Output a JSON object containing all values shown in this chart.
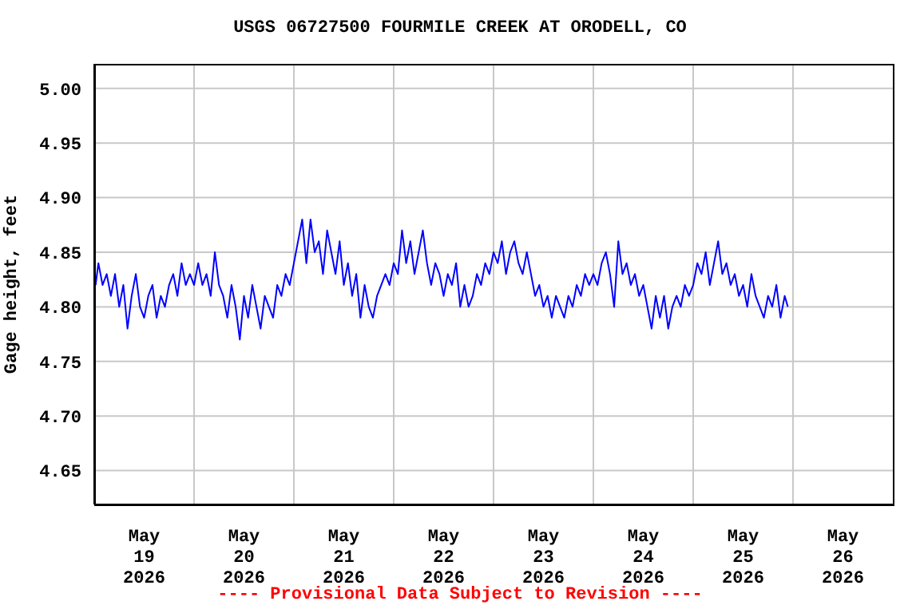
{
  "chart_data": {
    "type": "line",
    "title": "USGS 06727500 FOURMILE CREEK AT ORODELL, CO",
    "ylabel": "Gage height, feet",
    "annotations": [
      "---- Provisional Data Subject to Revision ----"
    ],
    "xlim": [
      "2026-05-19T00:00",
      "2026-05-27T00:00"
    ],
    "xticks": [
      {
        "value": "2026-05-19T12:00",
        "label": "May\n19\n2026"
      },
      {
        "value": "2026-05-20T00:00",
        "label": null
      },
      {
        "value": "2026-05-20T12:00",
        "label": "May\n20\n2026"
      },
      {
        "value": "2026-05-21T00:00",
        "label": null
      },
      {
        "value": "2026-05-21T12:00",
        "label": "May\n21\n2026"
      },
      {
        "value": "2026-05-22T00:00",
        "label": null
      },
      {
        "value": "2026-05-22T12:00",
        "label": "May\n22\n2026"
      },
      {
        "value": "2026-05-23T00:00",
        "label": null
      },
      {
        "value": "2026-05-23T12:00",
        "label": "May\n23\n2026"
      },
      {
        "value": "2026-05-24T00:00",
        "label": null
      },
      {
        "value": "2026-05-24T12:00",
        "label": "May\n24\n2026"
      },
      {
        "value": "2026-05-25T00:00",
        "label": null
      },
      {
        "value": "2026-05-25T12:00",
        "label": "May\n25\n2026"
      },
      {
        "value": "2026-05-26T00:00",
        "label": null
      },
      {
        "value": "2026-05-26T12:00",
        "label": "May\n26\n2026"
      }
    ],
    "ylim": [
      4.619,
      5.0225
    ],
    "yticks": [
      {
        "value": 4.65,
        "label": "4.65"
      },
      {
        "value": 4.7,
        "label": "4.70"
      },
      {
        "value": 4.75,
        "label": "4.75"
      },
      {
        "value": 4.8,
        "label": "4.80"
      },
      {
        "value": 4.85,
        "label": "4.85"
      },
      {
        "value": 4.9,
        "label": "4.90"
      },
      {
        "value": 4.95,
        "label": "4.95"
      },
      {
        "value": 5,
        "label": "5.00"
      }
    ],
    "grid": true,
    "marker": "none",
    "line_style": "solid",
    "series": [
      {
        "color": "#0000ff",
        "x": [
          "2026-05-19T00:20",
          "2026-05-19T01:00",
          "2026-05-19T02:00",
          "2026-05-19T03:00",
          "2026-05-19T04:00",
          "2026-05-19T05:00",
          "2026-05-19T06:00",
          "2026-05-19T07:00",
          "2026-05-19T08:00",
          "2026-05-19T09:00",
          "2026-05-19T10:00",
          "2026-05-19T11:00",
          "2026-05-19T12:00",
          "2026-05-19T13:00",
          "2026-05-19T14:00",
          "2026-05-19T15:00",
          "2026-05-19T16:00",
          "2026-05-19T17:00",
          "2026-05-19T18:00",
          "2026-05-19T19:00",
          "2026-05-19T20:00",
          "2026-05-19T21:00",
          "2026-05-19T22:00",
          "2026-05-19T23:00",
          "2026-05-20T00:00",
          "2026-05-20T01:00",
          "2026-05-20T02:00",
          "2026-05-20T03:00",
          "2026-05-20T04:00",
          "2026-05-20T05:00",
          "2026-05-20T06:00",
          "2026-05-20T07:00",
          "2026-05-20T08:00",
          "2026-05-20T09:00",
          "2026-05-20T10:00",
          "2026-05-20T11:00",
          "2026-05-20T12:00",
          "2026-05-20T13:00",
          "2026-05-20T14:00",
          "2026-05-20T15:00",
          "2026-05-20T16:00",
          "2026-05-20T17:00",
          "2026-05-20T18:00",
          "2026-05-20T19:00",
          "2026-05-20T20:00",
          "2026-05-20T21:00",
          "2026-05-20T22:00",
          "2026-05-20T23:00",
          "2026-05-21T00:00",
          "2026-05-21T01:00",
          "2026-05-21T02:00",
          "2026-05-21T03:00",
          "2026-05-21T04:00",
          "2026-05-21T05:00",
          "2026-05-21T06:00",
          "2026-05-21T07:00",
          "2026-05-21T08:00",
          "2026-05-21T09:00",
          "2026-05-21T10:00",
          "2026-05-21T11:00",
          "2026-05-21T12:00",
          "2026-05-21T13:00",
          "2026-05-21T14:00",
          "2026-05-21T15:00",
          "2026-05-21T16:00",
          "2026-05-21T17:00",
          "2026-05-21T18:00",
          "2026-05-21T19:00",
          "2026-05-21T20:00",
          "2026-05-21T21:00",
          "2026-05-21T22:00",
          "2026-05-21T23:00",
          "2026-05-22T00:00",
          "2026-05-22T01:00",
          "2026-05-22T02:00",
          "2026-05-22T03:00",
          "2026-05-22T04:00",
          "2026-05-22T05:00",
          "2026-05-22T06:00",
          "2026-05-22T07:00",
          "2026-05-22T08:00",
          "2026-05-22T09:00",
          "2026-05-22T10:00",
          "2026-05-22T11:00",
          "2026-05-22T12:00",
          "2026-05-22T13:00",
          "2026-05-22T14:00",
          "2026-05-22T15:00",
          "2026-05-22T16:00",
          "2026-05-22T17:00",
          "2026-05-22T18:00",
          "2026-05-22T19:00",
          "2026-05-22T20:00",
          "2026-05-22T21:00",
          "2026-05-22T22:00",
          "2026-05-22T23:00",
          "2026-05-23T00:00",
          "2026-05-23T01:00",
          "2026-05-23T02:00",
          "2026-05-23T03:00",
          "2026-05-23T04:00",
          "2026-05-23T05:00",
          "2026-05-23T06:00",
          "2026-05-23T07:00",
          "2026-05-23T08:00",
          "2026-05-23T09:00",
          "2026-05-23T10:00",
          "2026-05-23T11:00",
          "2026-05-23T12:00",
          "2026-05-23T13:00",
          "2026-05-23T14:00",
          "2026-05-23T15:00",
          "2026-05-23T16:00",
          "2026-05-23T17:00",
          "2026-05-23T18:00",
          "2026-05-23T19:00",
          "2026-05-23T20:00",
          "2026-05-23T21:00",
          "2026-05-23T22:00",
          "2026-05-23T23:00",
          "2026-05-24T00:00",
          "2026-05-24T01:00",
          "2026-05-24T02:00",
          "2026-05-24T03:00",
          "2026-05-24T04:00",
          "2026-05-24T05:00",
          "2026-05-24T06:00",
          "2026-05-24T07:00",
          "2026-05-24T08:00",
          "2026-05-24T09:00",
          "2026-05-24T10:00",
          "2026-05-24T11:00",
          "2026-05-24T12:00",
          "2026-05-24T13:00",
          "2026-05-24T14:00",
          "2026-05-24T15:00",
          "2026-05-24T16:00",
          "2026-05-24T17:00",
          "2026-05-24T18:00",
          "2026-05-24T19:00",
          "2026-05-24T20:00",
          "2026-05-24T21:00",
          "2026-05-24T22:00",
          "2026-05-24T23:00",
          "2026-05-25T00:00",
          "2026-05-25T01:00",
          "2026-05-25T02:00",
          "2026-05-25T03:00",
          "2026-05-25T04:00",
          "2026-05-25T05:00",
          "2026-05-25T06:00",
          "2026-05-25T07:00",
          "2026-05-25T08:00",
          "2026-05-25T09:00",
          "2026-05-25T10:00",
          "2026-05-25T11:00",
          "2026-05-25T12:00",
          "2026-05-25T13:00",
          "2026-05-25T14:00",
          "2026-05-25T15:00",
          "2026-05-25T16:00",
          "2026-05-25T17:00",
          "2026-05-25T18:00",
          "2026-05-25T19:00",
          "2026-05-25T20:00",
          "2026-05-25T21:00",
          "2026-05-25T22:00",
          "2026-05-25T22:45"
        ],
        "values": [
          4.82,
          4.84,
          4.82,
          4.83,
          4.81,
          4.83,
          4.8,
          4.82,
          4.78,
          4.81,
          4.83,
          4.8,
          4.79,
          4.81,
          4.82,
          4.79,
          4.81,
          4.8,
          4.82,
          4.83,
          4.81,
          4.84,
          4.82,
          4.83,
          4.82,
          4.84,
          4.82,
          4.83,
          4.81,
          4.85,
          4.82,
          4.81,
          4.79,
          4.82,
          4.8,
          4.77,
          4.81,
          4.79,
          4.82,
          4.8,
          4.78,
          4.81,
          4.8,
          4.79,
          4.82,
          4.81,
          4.83,
          4.82,
          4.84,
          4.86,
          4.88,
          4.84,
          4.88,
          4.85,
          4.86,
          4.83,
          4.87,
          4.85,
          4.83,
          4.86,
          4.82,
          4.84,
          4.81,
          4.83,
          4.79,
          4.82,
          4.8,
          4.79,
          4.81,
          4.82,
          4.83,
          4.82,
          4.84,
          4.83,
          4.87,
          4.84,
          4.86,
          4.83,
          4.85,
          4.87,
          4.84,
          4.82,
          4.84,
          4.83,
          4.81,
          4.83,
          4.82,
          4.84,
          4.8,
          4.82,
          4.8,
          4.81,
          4.83,
          4.82,
          4.84,
          4.83,
          4.85,
          4.84,
          4.86,
          4.83,
          4.85,
          4.86,
          4.84,
          4.83,
          4.85,
          4.83,
          4.81,
          4.82,
          4.8,
          4.81,
          4.79,
          4.81,
          4.8,
          4.79,
          4.81,
          4.8,
          4.82,
          4.81,
          4.83,
          4.82,
          4.83,
          4.82,
          4.84,
          4.85,
          4.83,
          4.8,
          4.86,
          4.83,
          4.84,
          4.82,
          4.83,
          4.81,
          4.82,
          4.8,
          4.78,
          4.81,
          4.79,
          4.81,
          4.78,
          4.8,
          4.81,
          4.8,
          4.82,
          4.81,
          4.82,
          4.84,
          4.83,
          4.85,
          4.82,
          4.84,
          4.86,
          4.83,
          4.84,
          4.82,
          4.83,
          4.81,
          4.82,
          4.8,
          4.83,
          4.81,
          4.8,
          4.79,
          4.81,
          4.8,
          4.82,
          4.79,
          4.81,
          4.8
        ]
      }
    ]
  }
}
